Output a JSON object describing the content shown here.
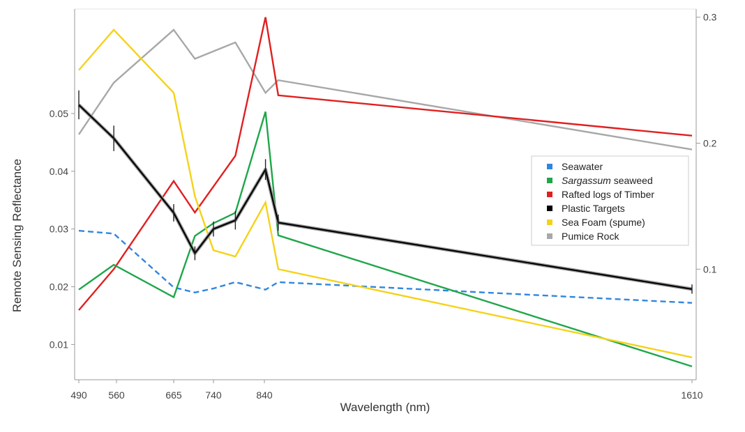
{
  "chart_data": {
    "type": "line",
    "title": "",
    "xlabel": "Wavelength (nm)",
    "ylabel": "Remote Sensing Reflectance",
    "xlim": [
      490,
      1610
    ],
    "ylim": [
      0.0045,
      0.067
    ],
    "y2lim": [
      0.015,
      0.3015
    ],
    "xticks": [
      490,
      560,
      665,
      740,
      840,
      1610
    ],
    "xtick_labels": [
      "490",
      "560",
      "665",
      "740",
      "840",
      "1610"
    ],
    "yticks": [
      0.01,
      0.02,
      0.03,
      0.04,
      0.05
    ],
    "ytick_labels": [
      "0.01",
      "0.02",
      "0.03",
      "0.04",
      "0.05"
    ],
    "y2ticks": [
      0.1,
      0.2,
      0.3
    ],
    "y2tick_labels": [
      "0.1",
      "0.2",
      "0.3"
    ],
    "grid": false,
    "legend_position": "right",
    "series": [
      {
        "name": "Seawater",
        "color": "#2f86e0",
        "dashed": true,
        "axis": "left",
        "x": [
          490,
          555,
          665,
          705,
          740,
          783,
          842,
          865,
          1610
        ],
        "y": [
          0.0297,
          0.0292,
          0.0199,
          0.019,
          0.0197,
          0.0208,
          0.0195,
          0.0208,
          0.0172
        ]
      },
      {
        "name": "Sargassum seaweed",
        "color": "#1fa64a",
        "axis": "left",
        "x": [
          490,
          555,
          665,
          705,
          740,
          783,
          842,
          865,
          1610
        ],
        "y": [
          0.0195,
          0.0238,
          0.0182,
          0.0288,
          0.031,
          0.0328,
          0.0503,
          0.0289,
          0.0062
        ]
      },
      {
        "name": "Rafted logs of Timber",
        "color": "#e02020",
        "axis": "right",
        "x": [
          490,
          555,
          665,
          705,
          783,
          842,
          865,
          1610
        ],
        "y": [
          0.0675,
          0.1,
          0.17,
          0.145,
          0.19,
          0.3,
          0.238,
          0.206
        ]
      },
      {
        "name": "Plastic Targets",
        "color": "#000000",
        "axis": "left",
        "x": [
          490,
          555,
          665,
          705,
          740,
          783,
          842,
          865,
          1610
        ],
        "y": [
          0.0515,
          0.0457,
          0.0328,
          0.0258,
          0.03,
          0.0315,
          0.0403,
          0.0311,
          0.0196
        ],
        "error": [
          0.0025,
          0.0022,
          0.0015,
          0.0012,
          0.0013,
          0.0016,
          0.0018,
          0.0014,
          0.0008
        ]
      },
      {
        "name": "Sea Foam (spume)",
        "color": "#f5d21a",
        "axis": "right",
        "x": [
          490,
          555,
          665,
          705,
          740,
          783,
          842,
          865,
          1610
        ],
        "y": [
          0.258,
          0.29,
          0.24,
          0.158,
          0.115,
          0.11,
          0.153,
          0.1,
          0.03
        ]
      },
      {
        "name": "Pumice Rock",
        "color": "#a8a8a8",
        "axis": "right",
        "x": [
          490,
          555,
          665,
          705,
          783,
          842,
          865,
          1610
        ],
        "y": [
          0.207,
          0.248,
          0.29,
          0.267,
          0.28,
          0.24,
          0.25,
          0.195
        ]
      }
    ]
  }
}
